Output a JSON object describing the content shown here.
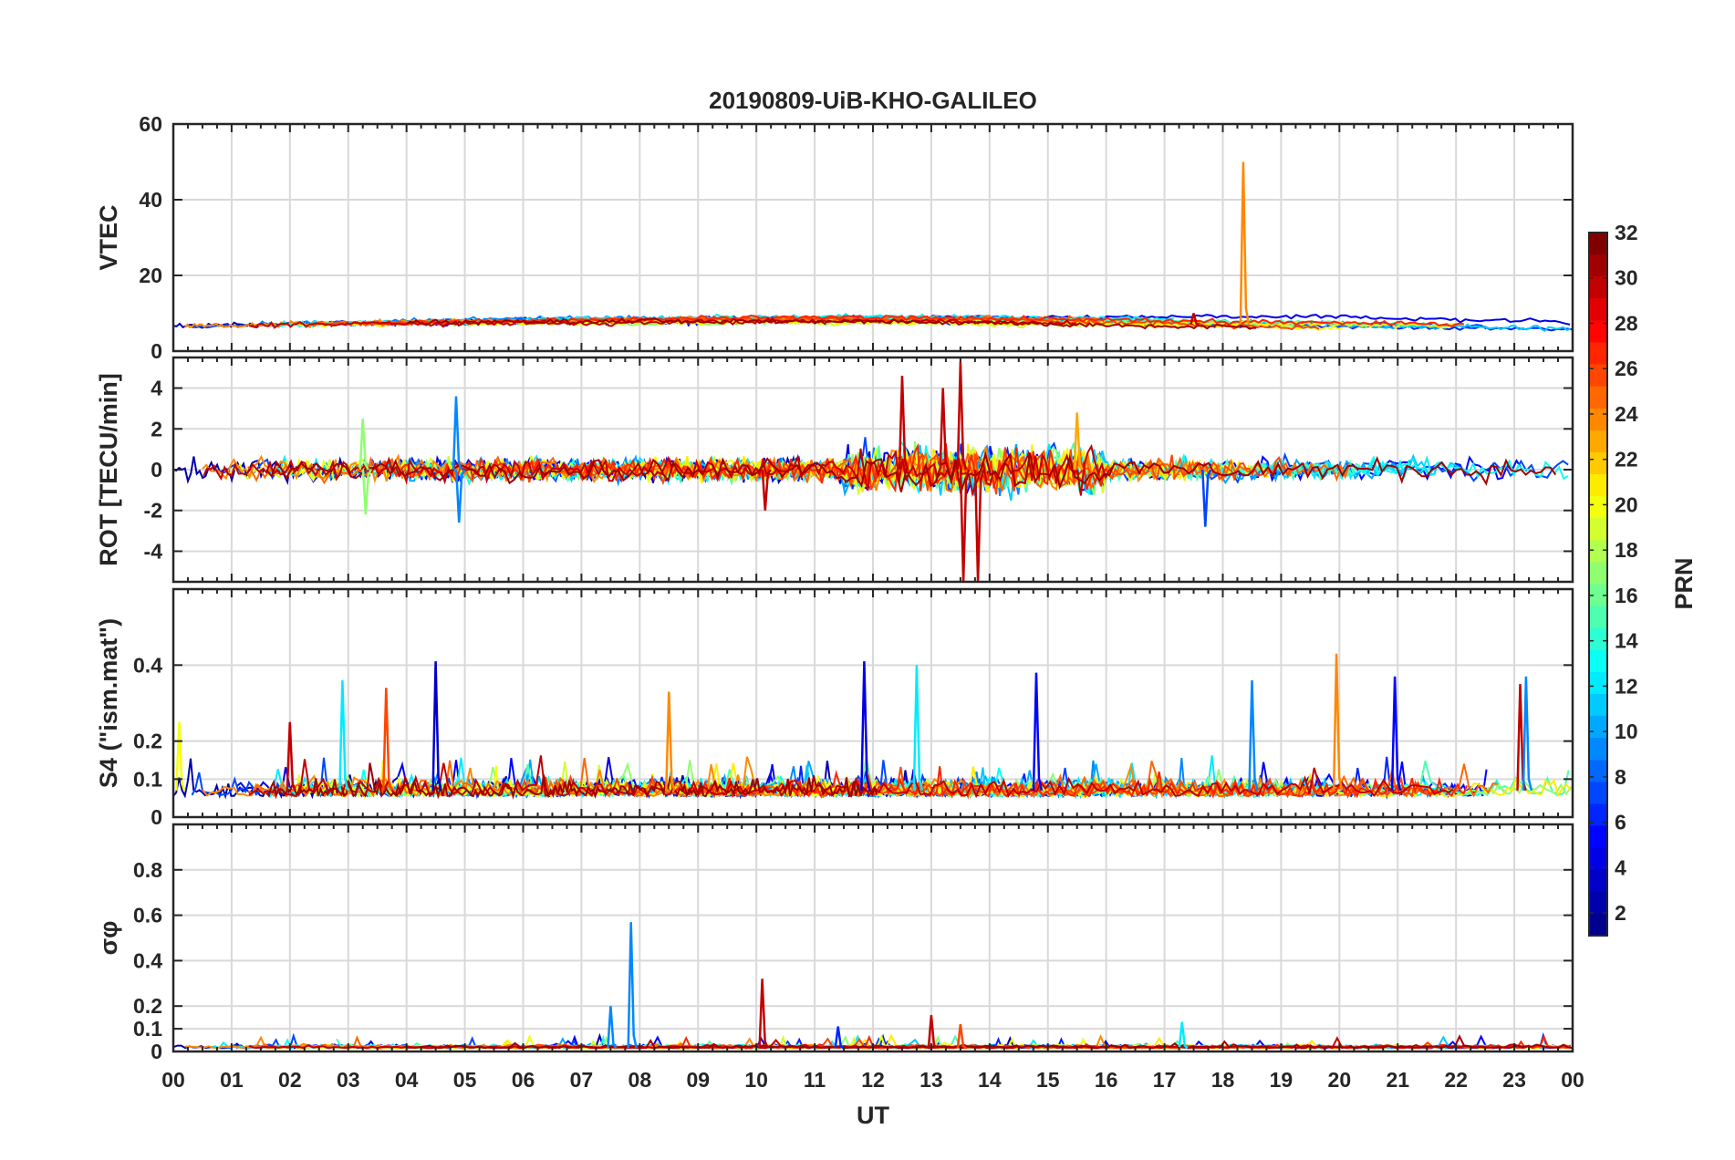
{
  "chart_data": {
    "type": "line",
    "title": "20190809-UiB-KHO-GALILEO",
    "xlabel": "UT",
    "x_range_hours": [
      0,
      24
    ],
    "x_tick_labels": [
      "00",
      "01",
      "02",
      "03",
      "04",
      "05",
      "06",
      "07",
      "08",
      "09",
      "10",
      "11",
      "12",
      "13",
      "14",
      "15",
      "16",
      "17",
      "18",
      "19",
      "20",
      "21",
      "22",
      "23",
      "00"
    ],
    "colormap": "jet",
    "colorbar": {
      "label": "PRN",
      "range": [
        1,
        32
      ],
      "ticks": [
        2,
        4,
        6,
        8,
        10,
        12,
        14,
        16,
        18,
        20,
        22,
        24,
        26,
        28,
        30,
        32
      ],
      "stops": [
        "#00008f",
        "#0000ff",
        "#0080ff",
        "#00ffff",
        "#80ff80",
        "#ffff00",
        "#ff8000",
        "#ff0000",
        "#800000"
      ]
    },
    "panels": [
      {
        "id": "vtec",
        "ylabel": "VTEC",
        "ylim": [
          0,
          60
        ],
        "yticks": [
          0,
          20,
          40,
          60
        ],
        "baseline": 6.5,
        "noise": 0.6,
        "features": [
          {
            "prn": 24,
            "x": 18.35,
            "y": 50,
            "note": "spike"
          },
          {
            "prn": 30,
            "x": 17.5,
            "y": 10
          }
        ]
      },
      {
        "id": "rot",
        "ylabel": "ROT [TECU/min]",
        "ylim": [
          -5.5,
          5.5
        ],
        "yticks": [
          -4,
          -2,
          0,
          2,
          4
        ],
        "baseline": 0,
        "noise": 0.25,
        "features": [
          {
            "prn": 30,
            "x": 13.5,
            "y": 5.3
          },
          {
            "prn": 30,
            "x": 13.55,
            "y": -5.5
          },
          {
            "prn": 30,
            "x": 13.2,
            "y": 4.0
          },
          {
            "prn": 30,
            "x": 12.5,
            "y": 4.6
          },
          {
            "prn": 30,
            "x": 13.8,
            "y": -5.5
          },
          {
            "prn": 9,
            "x": 4.85,
            "y": 3.6
          },
          {
            "prn": 9,
            "x": 4.9,
            "y": -2.6
          },
          {
            "prn": 7,
            "x": 17.7,
            "y": -2.8
          },
          {
            "prn": 17,
            "x": 3.25,
            "y": 2.5
          },
          {
            "prn": 17,
            "x": 3.3,
            "y": -2.2
          },
          {
            "prn": 23,
            "x": 15.5,
            "y": 2.8
          },
          {
            "prn": 30,
            "x": 10.15,
            "y": -2.0
          }
        ]
      },
      {
        "id": "s4",
        "ylabel": "S4 (\"ism.mat\")",
        "ylim": [
          0,
          0.6
        ],
        "yticks": [
          0,
          0.1,
          0.2,
          0.4
        ],
        "baseline": 0.07,
        "noise": 0.02,
        "features": [
          {
            "prn": 3,
            "x": 4.5,
            "y": 0.41
          },
          {
            "prn": 4,
            "x": 11.85,
            "y": 0.41
          },
          {
            "prn": 12,
            "x": 12.75,
            "y": 0.4
          },
          {
            "prn": 5,
            "x": 14.8,
            "y": 0.38
          },
          {
            "prn": 24,
            "x": 19.95,
            "y": 0.43
          },
          {
            "prn": 5,
            "x": 20.95,
            "y": 0.37
          },
          {
            "prn": 30,
            "x": 23.1,
            "y": 0.35
          },
          {
            "prn": 9,
            "x": 23.2,
            "y": 0.37
          },
          {
            "prn": 26,
            "x": 3.65,
            "y": 0.34
          },
          {
            "prn": 24,
            "x": 8.5,
            "y": 0.33
          },
          {
            "prn": 12,
            "x": 2.9,
            "y": 0.36
          },
          {
            "prn": 30,
            "x": 2.0,
            "y": 0.25
          },
          {
            "prn": 20,
            "x": 0.1,
            "y": 0.25
          },
          {
            "prn": 9,
            "x": 18.5,
            "y": 0.36
          }
        ]
      },
      {
        "id": "sigma_phi",
        "ylabel": "σφ",
        "ylim": [
          0,
          1
        ],
        "yticks": [
          0,
          0.1,
          0.2,
          0.4,
          0.6,
          0.8
        ],
        "baseline": 0.015,
        "noise": 0.006,
        "features": [
          {
            "prn": 9,
            "x": 7.85,
            "y": 0.57
          },
          {
            "prn": 9,
            "x": 7.5,
            "y": 0.2
          },
          {
            "prn": 30,
            "x": 10.1,
            "y": 0.32
          },
          {
            "prn": 30,
            "x": 13.0,
            "y": 0.16
          },
          {
            "prn": 26,
            "x": 13.5,
            "y": 0.12
          },
          {
            "prn": 12,
            "x": 17.3,
            "y": 0.13
          },
          {
            "prn": 6,
            "x": 11.4,
            "y": 0.11
          }
        ]
      }
    ]
  }
}
